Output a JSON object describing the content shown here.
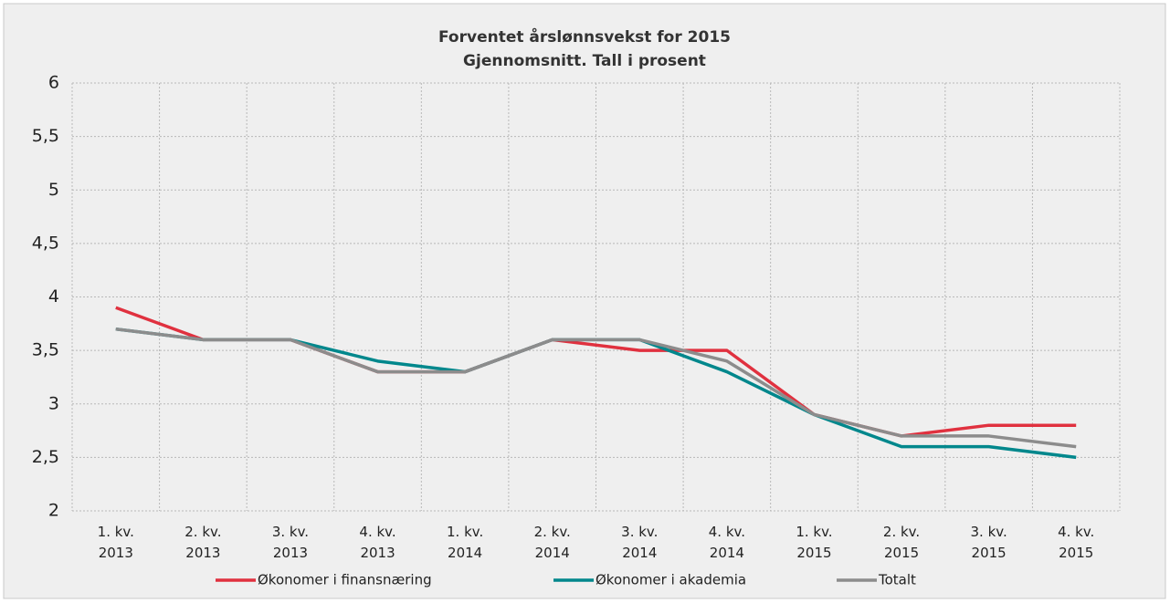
{
  "chart_data": {
    "type": "line",
    "title": "Forventet årslønnsvekst for 2015",
    "subtitle": "Gjennomsnitt. Tall i prosent",
    "categories": [
      "1. kv. 2013",
      "2. kv. 2013",
      "3. kv. 2013",
      "4. kv. 2013",
      "1. kv. 2014",
      "2. kv. 2014",
      "3. kv. 2014",
      "4. kv. 2014",
      "1. kv. 2015",
      "2. kv. 2015",
      "3. kv. 2015",
      "4. kv. 2015"
    ],
    "series": [
      {
        "name": "Økonomer i finansnæring",
        "color": "#e0313f",
        "values": [
          3.9,
          3.6,
          3.6,
          3.3,
          3.3,
          3.6,
          3.5,
          3.5,
          2.9,
          2.7,
          2.8,
          2.8
        ]
      },
      {
        "name": "Økonomer i akademia",
        "color": "#00878c",
        "values": [
          3.7,
          3.6,
          3.6,
          3.4,
          3.3,
          3.6,
          3.6,
          3.3,
          2.9,
          2.6,
          2.6,
          2.5
        ]
      },
      {
        "name": "Totalt",
        "color": "#8c8c8c",
        "values": [
          3.7,
          3.6,
          3.6,
          3.3,
          3.3,
          3.6,
          3.6,
          3.4,
          2.9,
          2.7,
          2.7,
          2.6
        ]
      }
    ],
    "ylim": [
      2,
      6
    ],
    "yticks": [
      2,
      {
        "value": 2.5,
        "label": "2,5"
      },
      3,
      {
        "value": 3.5,
        "label": "3,5"
      },
      4,
      {
        "value": 4.5,
        "label": "4,5"
      },
      5,
      {
        "value": 5.5,
        "label": "5,5"
      },
      6
    ],
    "grid": true,
    "legend": "bottom"
  }
}
